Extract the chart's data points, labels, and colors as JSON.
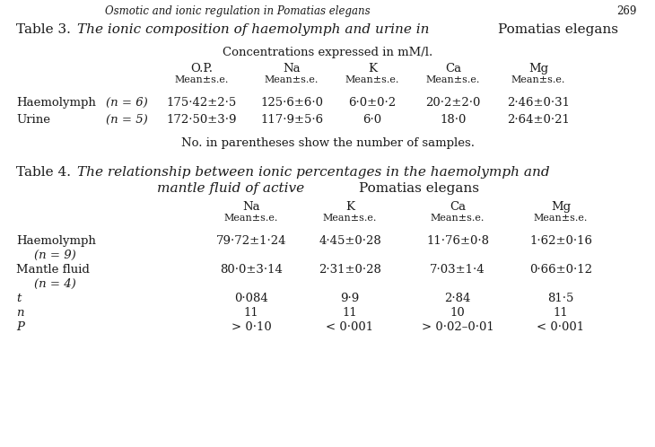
{
  "page_header": "Osmotic and ionic regulation in Pomatias elegans",
  "page_num": "269",
  "table3_subtitle": "Concentrations expressed in mM/l.",
  "table3_col_headers": [
    "O.P.",
    "Na",
    "K",
    "Ca",
    "Mg"
  ],
  "table3_footnote": "No. in parentheses show the number of samples.",
  "table4_col_headers": [
    "Na",
    "K",
    "Ca",
    "Mg"
  ],
  "bg_color": "#ffffff",
  "text_color": "#1a1a1a",
  "fs": 9.5,
  "fs_small": 8.0,
  "fs_title": 11.0,
  "fs_header": 9.0
}
